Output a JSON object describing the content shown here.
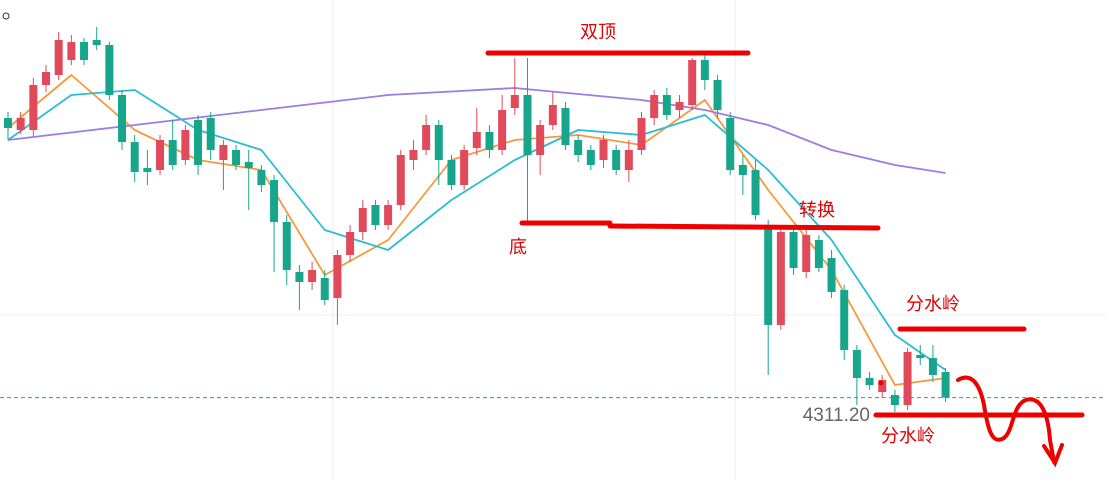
{
  "chart_data": {
    "type": "candlestick",
    "ylim": [
      4270,
      4510
    ],
    "up_color": "#e04a5a",
    "down_color": "#17a68b",
    "candles": {
      "open": [
        4451,
        4445,
        4445,
        4467.5,
        4472.5,
        4480,
        4489,
        4490,
        4487.5,
        4462.5,
        4439,
        4426,
        4425,
        4440,
        4430,
        4450,
        4451,
        4430,
        4435,
        4429,
        4425,
        4420,
        4399,
        4374,
        4369,
        4371,
        4361,
        4382.5,
        4394,
        4407.5,
        4397.5,
        4407.5,
        4430,
        4435,
        4447.5,
        4430,
        4417.5,
        4436,
        4444,
        4435,
        4456,
        4462.5,
        4432.5,
        4447.5,
        4456,
        4440,
        4435,
        4430,
        4435,
        4425,
        4435,
        4451,
        4462.5,
        4455,
        4457.5,
        4480,
        4470,
        4451,
        4427.5,
        4425,
        4397.5,
        4347.5,
        4394,
        4374,
        4390,
        4381,
        4365,
        4335,
        4321,
        4314,
        4312.5,
        4307.5,
        4332.5,
        4331,
        4324
      ],
      "high": [
        4454,
        4454,
        4471,
        4477.5,
        4494,
        4492.5,
        4491,
        4496.5,
        4489,
        4465,
        4442.5,
        4435,
        4442.5,
        4450,
        4447.5,
        4452.5,
        4454,
        4440,
        4437.5,
        4435,
        4427.5,
        4422.5,
        4402.5,
        4377.5,
        4379,
        4375,
        4385,
        4397.5,
        4410,
        4410,
        4410,
        4435,
        4440,
        4452.5,
        4450,
        4432.5,
        4437.5,
        4456,
        4447.5,
        4462.5,
        4481,
        4481,
        4450,
        4464,
        4459,
        4442.5,
        4437.5,
        4442.5,
        4437.5,
        4440,
        4454,
        4465,
        4466,
        4462.5,
        4481,
        4482.5,
        4472.5,
        4454,
        4432.5,
        4430,
        4400,
        4396,
        4396,
        4395,
        4392.5,
        4385,
        4367.5,
        4337.5,
        4324,
        4322.5,
        4315,
        4336,
        4337.5,
        4337.5,
        4326
      ],
      "low": [
        4440,
        4443,
        4442,
        4464,
        4470,
        4477.5,
        4477.5,
        4485,
        4460,
        4435,
        4419,
        4417.5,
        4422.5,
        4425,
        4427.5,
        4422.5,
        4430,
        4415,
        4425,
        4405,
        4414,
        4374,
        4367.5,
        4355,
        4365,
        4357.5,
        4347.5,
        4379,
        4390,
        4395,
        4395,
        4405,
        4425,
        4432.5,
        4417.5,
        4415,
        4415,
        4432.5,
        4431,
        4432.5,
        4452.5,
        4397.5,
        4422.5,
        4445,
        4435,
        4429,
        4425,
        4426,
        4422.5,
        4419,
        4432.5,
        4447.5,
        4450,
        4451,
        4455,
        4465,
        4451,
        4422.5,
        4412.5,
        4400,
        4322.5,
        4345,
        4372.5,
        4371,
        4374,
        4361,
        4330,
        4307.5,
        4315,
        4311,
        4304,
        4305,
        4327.5,
        4319,
        4309
      ],
      "close": [
        4446,
        4451,
        4467.5,
        4474,
        4490,
        4489,
        4480,
        4487.5,
        4462.5,
        4439,
        4424,
        4424,
        4440,
        4427.5,
        4445,
        4427.5,
        4435,
        4437.5,
        4427.5,
        4426,
        4417.5,
        4399,
        4375,
        4369,
        4375,
        4360,
        4382.5,
        4394,
        4406,
        4397.5,
        4407.5,
        4432.5,
        4435,
        4447.5,
        4430,
        4417.5,
        4435,
        4444,
        4435,
        4455,
        4462.5,
        4432.5,
        4447.5,
        4457.5,
        4437.5,
        4432.5,
        4427.5,
        4440,
        4425,
        4435,
        4451,
        4462.5,
        4452.5,
        4459,
        4480,
        4470,
        4455,
        4425,
        4422.5,
        4402.5,
        4347.5,
        4394,
        4376,
        4392.5,
        4376,
        4364,
        4335,
        4321,
        4317.5,
        4320,
        4307.5,
        4334,
        4331,
        4322.5,
        4311.2
      ]
    },
    "lines": [
      {
        "color": "#f59a3c",
        "x": [
          0,
          5,
          10,
          15,
          20,
          25,
          30,
          35,
          40,
          45,
          50,
          55,
          60,
          65,
          70,
          74
        ],
        "values": [
          4446,
          4472.5,
          4445,
          4430,
          4425,
          4372.5,
          4390,
          4430,
          4440,
          4442.5,
          4437.5,
          4460,
          4415,
          4375,
          4317.5,
          4321
        ]
      },
      {
        "color": "#2bbcd4",
        "x": [
          0,
          5,
          10,
          15,
          20,
          25,
          30,
          35,
          40,
          45,
          50,
          55,
          60,
          65,
          70,
          74
        ],
        "values": [
          4440,
          4462.5,
          4465,
          4445,
          4435,
          4395,
          4385,
          4410,
          4430,
          4445,
          4442.5,
          4452.5,
          4425,
          4390,
          4342.5,
          4325
        ]
      },
      {
        "color": "#9b7ee0",
        "x": [
          0,
          10,
          20,
          30,
          40,
          50,
          55,
          60,
          65,
          70,
          74
        ],
        "values": [
          4440,
          4447.5,
          4455,
          4462.5,
          4466,
          4460,
          4455,
          4447.5,
          4435,
          4427.5,
          4423.5
        ]
      }
    ],
    "last_price": {
      "value": 4311.2,
      "label": "4311.20"
    },
    "annotations": [
      "双顶",
      "底",
      "转换",
      "分水岭",
      "分水岭"
    ]
  }
}
